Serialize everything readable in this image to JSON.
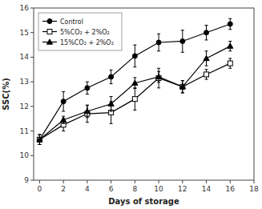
{
  "chart_data": {
    "type": "line",
    "xlabel": "Days of storage",
    "ylabel": "SSC(%)",
    "x": [
      0,
      2,
      4,
      6,
      8,
      10,
      12,
      14,
      16
    ],
    "series": [
      {
        "name": "Control",
        "color": "#000000",
        "marker": "circle",
        "values": [
          10.65,
          12.2,
          12.75,
          13.2,
          14.05,
          14.6,
          14.65,
          15.0,
          15.35
        ],
        "errors": [
          0.2,
          0.4,
          0.25,
          0.28,
          0.45,
          0.35,
          0.45,
          0.3,
          0.22
        ]
      },
      {
        "name": "5%CO₂ + 2%O₂",
        "color": "#000000",
        "marker": "square-open",
        "values": [
          10.65,
          11.25,
          11.7,
          11.75,
          12.3,
          13.15,
          12.8,
          13.3,
          13.75
        ],
        "errors": [
          0.2,
          0.25,
          0.35,
          0.45,
          0.45,
          0.4,
          0.25,
          0.2,
          0.2
        ]
      },
      {
        "name": "15%CO₂ + 2%O₂",
        "color": "#000000",
        "marker": "triangle",
        "values": [
          10.65,
          11.45,
          11.8,
          12.1,
          12.95,
          13.2,
          12.8,
          13.95,
          14.45
        ],
        "errors": [
          0.2,
          0.15,
          0.25,
          0.3,
          0.22,
          0.22,
          0.25,
          0.3,
          0.2
        ]
      }
    ],
    "xlim": [
      -0.5,
      18
    ],
    "ylim": [
      9,
      16
    ],
    "xticks": [
      0,
      2,
      4,
      6,
      8,
      10,
      12,
      14,
      16,
      18
    ],
    "yticks": [
      9,
      10,
      11,
      12,
      13,
      14,
      15,
      16
    ],
    "legend": "upper-left",
    "grid": false
  }
}
